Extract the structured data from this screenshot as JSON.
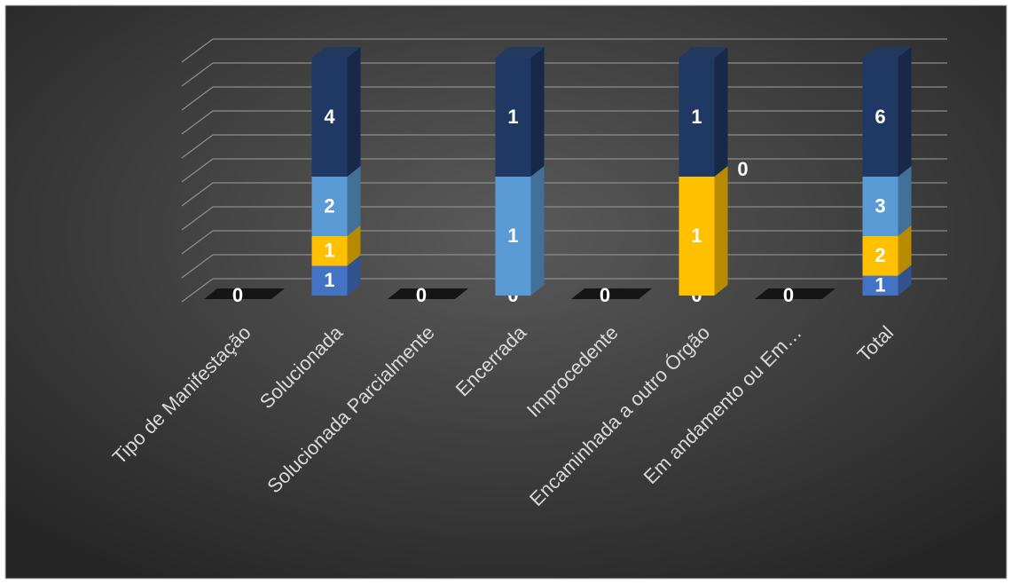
{
  "chart_data": {
    "type": "bar",
    "stack": "percent",
    "grid": true,
    "categories": [
      "Tipo de Manifestação",
      "Solucionada",
      "Solucionada Parcialmente",
      "Encerrada",
      "Improcedente",
      "Encaminhada a outro Órgão",
      "Em andamento ou Em…",
      "Total"
    ],
    "ylim": [
      0,
      100
    ],
    "yticks": [
      0,
      10,
      20,
      30,
      40,
      50,
      60,
      70,
      80,
      90,
      100
    ],
    "series": [
      {
        "color": "#4472c4",
        "values": [
          0,
          1,
          0,
          0,
          0,
          0,
          0,
          1
        ]
      },
      {
        "color": "#ffc000",
        "values": [
          null,
          1,
          null,
          null,
          null,
          1,
          null,
          2
        ]
      },
      {
        "color": "#5b9bd5",
        "values": [
          null,
          2,
          null,
          1,
          null,
          0,
          null,
          3
        ]
      },
      {
        "color": "#203864",
        "values": [
          null,
          4,
          null,
          1,
          null,
          1,
          null,
          6
        ]
      }
    ]
  }
}
